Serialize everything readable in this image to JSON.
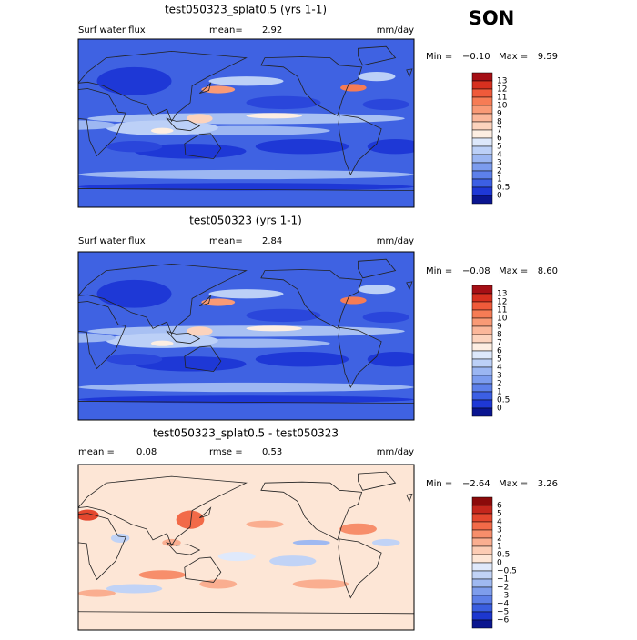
{
  "season": "SON",
  "panels": [
    {
      "title": "test050323_splat0.5 (yrs 1-1)",
      "left_label": "Surf water flux",
      "stat1_label": "mean=",
      "stat1_value": "2.92",
      "units": "mm/day",
      "min_label": "Min =",
      "min": "−0.10",
      "max_label": "Max =",
      "max": "9.59",
      "colorbar": {
        "labels": [
          "13",
          "12",
          "11",
          "10",
          "9",
          "8",
          "7",
          "6",
          "5",
          "4",
          "3",
          "2",
          "1",
          "0.5",
          "0"
        ],
        "colors": [
          "#a50f15",
          "#d7301f",
          "#ef5a3a",
          "#f67c55",
          "#f99a76",
          "#fbb79a",
          "#fcd3bd",
          "#fdeee2",
          "#dde8fb",
          "#bcd0f7",
          "#9bb6f2",
          "#7c9cee",
          "#5d80ea",
          "#3c5fe4",
          "#1e38d6",
          "#0a1590"
        ]
      },
      "map": "full"
    },
    {
      "title": "test050323 (yrs 1-1)",
      "left_label": "Surf water flux",
      "stat1_label": "mean=",
      "stat1_value": "2.84",
      "units": "mm/day",
      "min_label": "Min =",
      "min": "−0.08",
      "max_label": "Max =",
      "max": "8.60",
      "colorbar": {
        "labels": [
          "13",
          "12",
          "11",
          "10",
          "9",
          "8",
          "7",
          "6",
          "5",
          "4",
          "3",
          "2",
          "1",
          "0.5",
          "0"
        ],
        "colors": [
          "#a50f15",
          "#d7301f",
          "#ef5a3a",
          "#f67c55",
          "#f99a76",
          "#fbb79a",
          "#fcd3bd",
          "#fdeee2",
          "#dde8fb",
          "#bcd0f7",
          "#9bb6f2",
          "#7c9cee",
          "#5d80ea",
          "#3c5fe4",
          "#1e38d6",
          "#0a1590"
        ]
      },
      "map": "full"
    },
    {
      "title": "test050323_splat0.5 - test050323",
      "left_label": "mean =",
      "left_value": "0.08",
      "stat1_label": "rmse =",
      "stat1_value": "0.53",
      "units": "mm/day",
      "min_label": "Min =",
      "min": "−2.64",
      "max_label": "Max =",
      "max": "3.26",
      "colorbar": {
        "labels": [
          "6",
          "5",
          "4",
          "3",
          "2",
          "1",
          "0.5",
          "0",
          "−0.5",
          "−1",
          "−2",
          "−3",
          "−4",
          "−5",
          "−6"
        ],
        "colors": [
          "#8b0a0a",
          "#c4261c",
          "#e4472e",
          "#f26a48",
          "#f78e6b",
          "#faae90",
          "#fcccb4",
          "#fde6d6",
          "#dfe9fb",
          "#c1d3f6",
          "#9fb9f1",
          "#7e9dec",
          "#5d7fe7",
          "#3a5ee0",
          "#1d37cf",
          "#0b168f"
        ]
      },
      "map": "diff"
    }
  ]
}
